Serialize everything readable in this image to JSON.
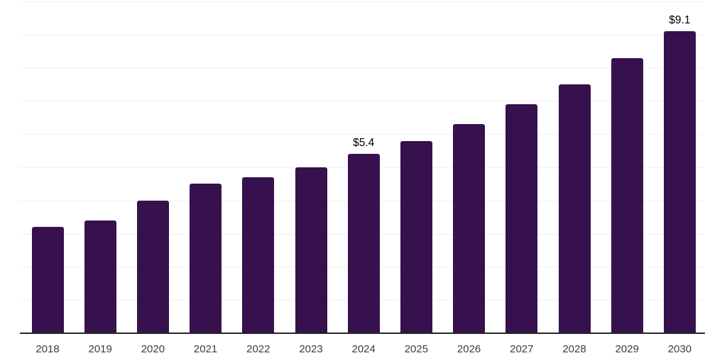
{
  "chart_data": {
    "type": "bar",
    "title": "",
    "xlabel": "",
    "ylabel": "",
    "categories": [
      "2018",
      "2019",
      "2020",
      "2021",
      "2022",
      "2023",
      "2024",
      "2025",
      "2026",
      "2027",
      "2028",
      "2029",
      "2030"
    ],
    "values": [
      3.2,
      3.4,
      4.0,
      4.5,
      4.7,
      5.0,
      5.4,
      5.8,
      6.3,
      6.9,
      7.5,
      8.3,
      9.1
    ],
    "data_labels": [
      {
        "category": "2024",
        "text": "$5.4"
      },
      {
        "category": "2030",
        "text": "$9.1"
      }
    ],
    "ylim": [
      0,
      10
    ],
    "grid_step": 1,
    "grid": "horizontal",
    "legend": "none",
    "colors": {
      "bar": "#36114E",
      "gridline": "#f0f0f0",
      "axis_line": "#262626",
      "tick_label": "#3d3d3d",
      "value_label": "#000000",
      "background": "#ffffff"
    }
  }
}
